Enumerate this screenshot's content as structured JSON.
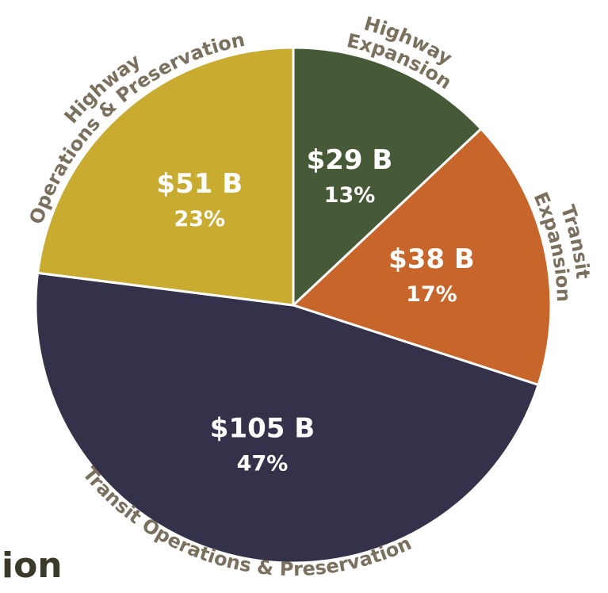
{
  "chart_data": {
    "type": "pie",
    "categories": [
      [
        "Highway",
        "Expansion"
      ],
      [
        "Transit",
        "Expansion"
      ],
      [
        "Transit Operations & Preservation"
      ],
      [
        "Highway",
        "Operations & Preservation"
      ]
    ],
    "values": [
      13,
      17,
      47,
      23
    ],
    "value_labels": [
      "13%",
      "17%",
      "47%",
      "23%"
    ],
    "amount_labels": [
      "$29 B",
      "$38 B",
      "$105 B",
      "$51 B"
    ],
    "colors": [
      "#465a37",
      "#c8652a",
      "#33324a",
      "#c9ac2f"
    ]
  },
  "footer_text": "ion"
}
